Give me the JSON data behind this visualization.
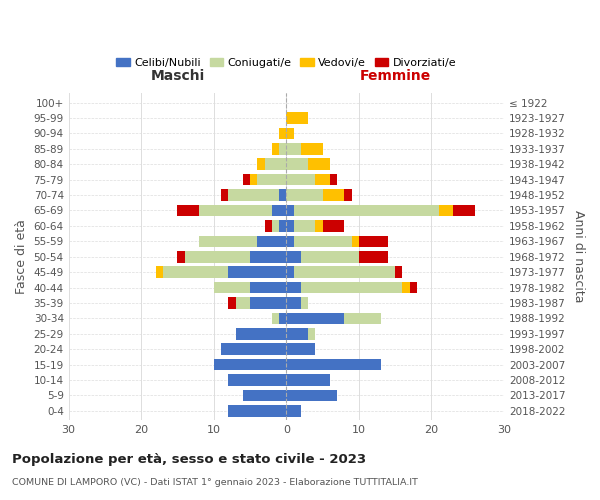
{
  "age_groups": [
    "0-4",
    "5-9",
    "10-14",
    "15-19",
    "20-24",
    "25-29",
    "30-34",
    "35-39",
    "40-44",
    "45-49",
    "50-54",
    "55-59",
    "60-64",
    "65-69",
    "70-74",
    "75-79",
    "80-84",
    "85-89",
    "90-94",
    "95-99",
    "100+"
  ],
  "birth_years": [
    "2018-2022",
    "2013-2017",
    "2008-2012",
    "2003-2007",
    "1998-2002",
    "1993-1997",
    "1988-1992",
    "1983-1987",
    "1978-1982",
    "1973-1977",
    "1968-1972",
    "1963-1967",
    "1958-1962",
    "1953-1957",
    "1948-1952",
    "1943-1947",
    "1938-1942",
    "1933-1937",
    "1928-1932",
    "1923-1927",
    "≤ 1922"
  ],
  "male": {
    "celibi": [
      8,
      6,
      8,
      10,
      9,
      7,
      1,
      5,
      5,
      8,
      5,
      4,
      1,
      2,
      1,
      0,
      0,
      0,
      0,
      0,
      0
    ],
    "coniugati": [
      0,
      0,
      0,
      0,
      0,
      0,
      1,
      2,
      5,
      9,
      9,
      8,
      1,
      10,
      7,
      4,
      3,
      1,
      0,
      0,
      0
    ],
    "vedovi": [
      0,
      0,
      0,
      0,
      0,
      0,
      0,
      0,
      0,
      1,
      0,
      0,
      0,
      0,
      0,
      1,
      1,
      1,
      1,
      0,
      0
    ],
    "divorziati": [
      0,
      0,
      0,
      0,
      0,
      0,
      0,
      1,
      0,
      0,
      1,
      0,
      1,
      3,
      1,
      1,
      0,
      0,
      0,
      0,
      0
    ]
  },
  "female": {
    "nubili": [
      2,
      7,
      6,
      13,
      4,
      3,
      8,
      2,
      2,
      1,
      2,
      1,
      1,
      1,
      0,
      0,
      0,
      0,
      0,
      0,
      0
    ],
    "coniugate": [
      0,
      0,
      0,
      0,
      0,
      1,
      5,
      1,
      14,
      14,
      8,
      8,
      3,
      20,
      5,
      4,
      3,
      2,
      0,
      0,
      0
    ],
    "vedove": [
      0,
      0,
      0,
      0,
      0,
      0,
      0,
      0,
      1,
      0,
      0,
      1,
      1,
      2,
      3,
      2,
      3,
      3,
      1,
      3,
      0
    ],
    "divorziate": [
      0,
      0,
      0,
      0,
      0,
      0,
      0,
      0,
      1,
      1,
      4,
      4,
      3,
      3,
      1,
      1,
      0,
      0,
      0,
      0,
      0
    ]
  },
  "colors": {
    "celibi": "#4472c4",
    "coniugati": "#c6d9a0",
    "vedovi": "#ffc000",
    "divorziati": "#cc0000"
  },
  "title": "Popolazione per età, sesso e stato civile - 2023",
  "subtitle": "COMUNE DI LAMPORO (VC) - Dati ISTAT 1° gennaio 2023 - Elaborazione TUTTITALIA.IT",
  "xlabel_left": "Maschi",
  "xlabel_right": "Femmine",
  "ylabel_left": "Fasce di età",
  "ylabel_right": "Anni di nascita",
  "xlim": 30,
  "background_color": "#ffffff",
  "grid_color": "#dddddd"
}
